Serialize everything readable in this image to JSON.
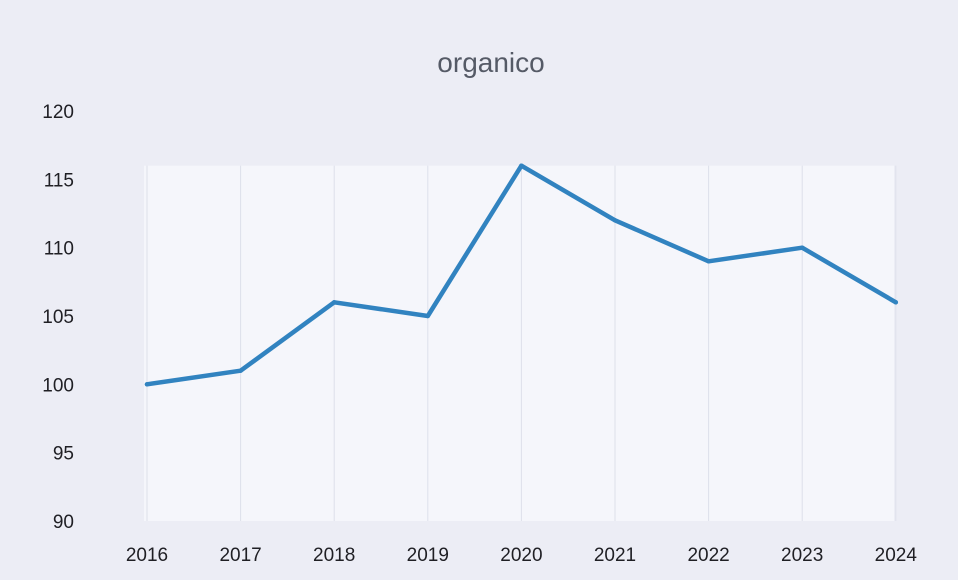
{
  "chart_data": {
    "type": "line",
    "title": "organico",
    "xlabel": "",
    "ylabel": "",
    "categories": [
      "2016",
      "2017",
      "2018",
      "2019",
      "2020",
      "2021",
      "2022",
      "2023",
      "2024"
    ],
    "series": [
      {
        "values": [
          100,
          101,
          106,
          105,
          116,
          112,
          109,
          110,
          106
        ]
      }
    ],
    "ylim": [
      90,
      120
    ],
    "yticks": [
      "90",
      "95",
      "100",
      "105",
      "110",
      "115",
      "120"
    ],
    "grid": true,
    "legend": "none"
  },
  "colors": {
    "line": "#3183c0",
    "plot_background": "#f5f6fb",
    "frame_background": "#ecedf5"
  }
}
